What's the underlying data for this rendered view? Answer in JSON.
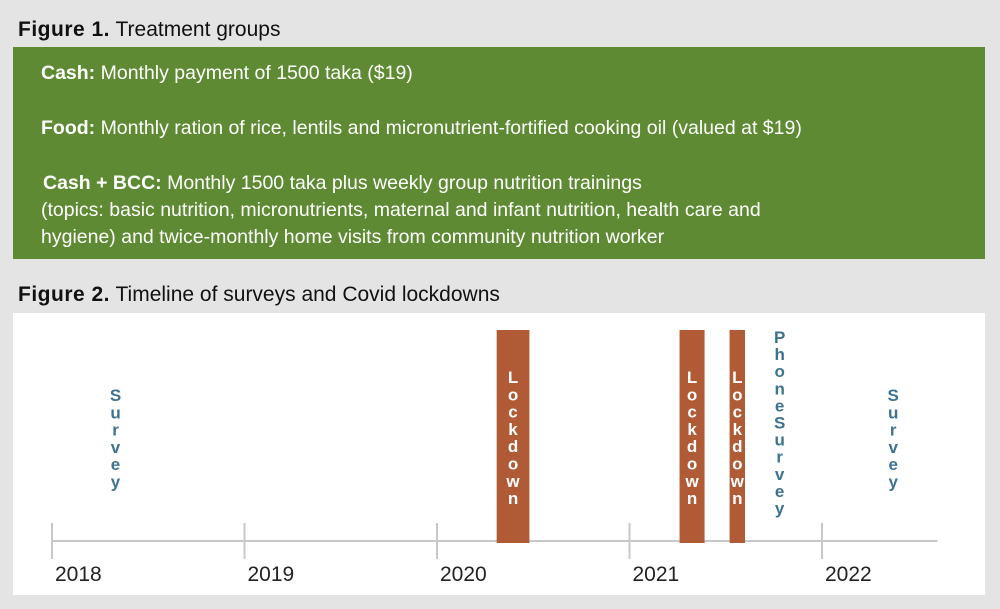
{
  "figure1": {
    "label": "Figure 1.",
    "title": "Treatment groups",
    "green": "#5e8a33",
    "rows": [
      {
        "name": "Cash:",
        "text": "Monthly payment of 1500 taka ($19)"
      },
      {
        "name": "Food:",
        "text": "Monthly ration of rice, lentils and micronutrient-fortified cooking oil (valued at $19)"
      },
      {
        "name": "Cash + BCC:",
        "text": "Monthly 1500 taka plus weekly group nutrition trainings"
      }
    ],
    "bcc_line2": "(topics: basic nutrition, micronutrients, maternal and infant nutrition, health care and",
    "bcc_line3": "hygiene) and twice-monthly home visits from community nutrition worker"
  },
  "figure2": {
    "label": "Figure 2.",
    "title": "Timeline of surveys and Covid lockdowns"
  },
  "chart_data": {
    "type": "timeline",
    "years": [
      "2018",
      "2019",
      "2020",
      "2021",
      "2022"
    ],
    "x_range": [
      2018,
      2022.6
    ],
    "events": [
      {
        "kind": "label",
        "text": "Survey",
        "year": 2018.33
      },
      {
        "kind": "bar",
        "text": "Lockdown",
        "start": 2020.31,
        "end": 2020.48
      },
      {
        "kind": "bar",
        "text": "Lockdown",
        "start": 2021.26,
        "end": 2021.39
      },
      {
        "kind": "bar",
        "text": "Lockdown",
        "start": 2021.52,
        "end": 2021.6
      },
      {
        "kind": "label",
        "text": "Phone Survey",
        "year": 2021.78
      },
      {
        "kind": "label",
        "text": "Survey",
        "year": 2022.37
      }
    ],
    "colors": {
      "bar": "#b05a36",
      "label": "#3e7390",
      "axis": "#c8c8c8"
    }
  }
}
